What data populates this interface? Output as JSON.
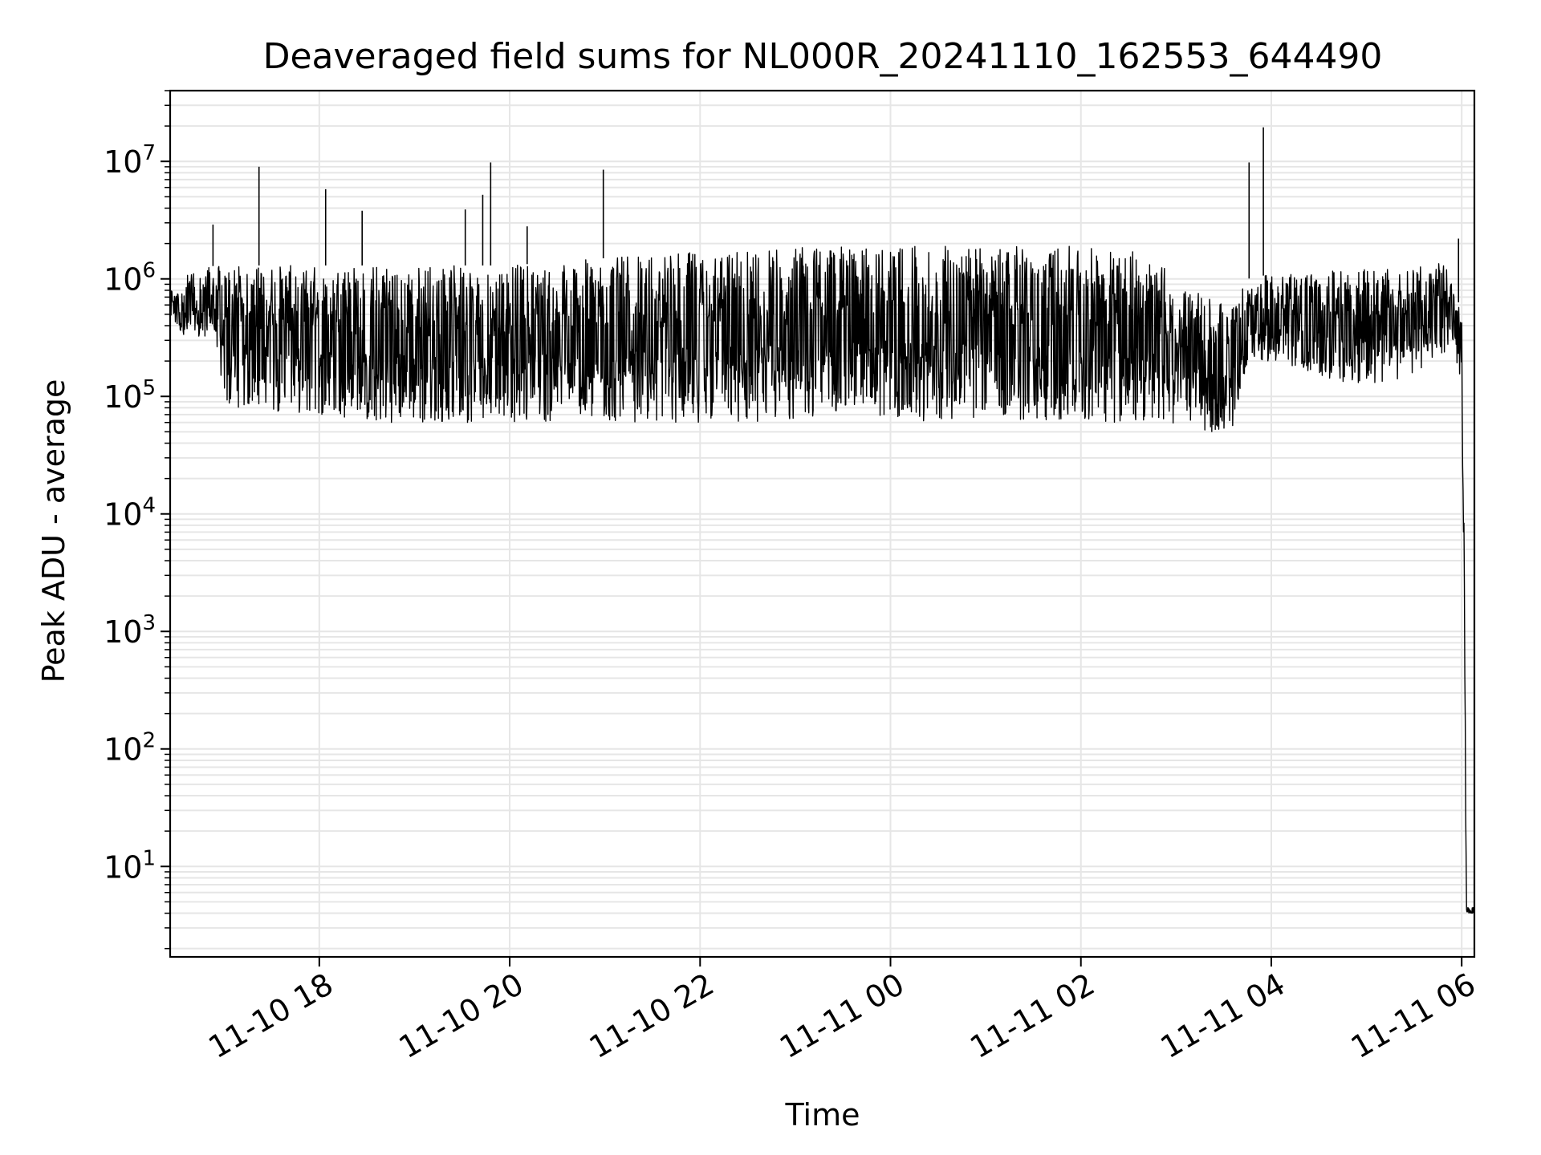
{
  "chart_data": {
    "type": "line",
    "title": "Deaveraged field sums for NL000R_20241110_162553_644490",
    "xlabel": "Time",
    "ylabel": "Peak ADU - average",
    "yscale": "log",
    "ylim": [
      1.7,
      40000000
    ],
    "xlim": [
      "11-10 16:26",
      "11-11 06:08"
    ],
    "grid": true,
    "x_ticks": [
      "11-10 18",
      "11-10 20",
      "11-10 22",
      "11-11 00",
      "11-11 02",
      "11-11 04",
      "11-11 06"
    ],
    "y_ticks": [
      {
        "base": "10",
        "exp": "1",
        "value": 10
      },
      {
        "base": "10",
        "exp": "2",
        "value": 100
      },
      {
        "base": "10",
        "exp": "3",
        "value": 1000
      },
      {
        "base": "10",
        "exp": "4",
        "value": 10000
      },
      {
        "base": "10",
        "exp": "5",
        "value": 100000
      },
      {
        "base": "10",
        "exp": "6",
        "value": 1000000
      },
      {
        "base": "10",
        "exp": "7",
        "value": 10000000
      }
    ],
    "series": [
      {
        "color": "#000000",
        "x": [
          "11-10 16:26",
          "11-10 16:40",
          "11-10 16:55",
          "11-10 17:00",
          "11-10 17:10",
          "11-10 17:30",
          "11-10 18:00",
          "11-10 18:30",
          "11-10 19:00",
          "11-10 19:30",
          "11-10 20:00",
          "11-10 20:30",
          "11-10 21:00",
          "11-10 21:30",
          "11-10 22:00",
          "11-10 22:30",
          "11-10 23:00",
          "11-10 23:30",
          "11-11 00:00",
          "11-11 00:30",
          "11-11 01:00",
          "11-11 01:30",
          "11-11 02:00",
          "11-11 02:30",
          "11-11 02:50",
          "11-11 03:00",
          "11-11 03:20",
          "11-11 03:35",
          "11-11 03:45",
          "11-11 04:00",
          "11-11 04:30",
          "11-11 05:00",
          "11-11 05:30",
          "11-11 05:50",
          "11-11 05:55",
          "11-11 06:00",
          "11-11 06:01",
          "11-11 06:03",
          "11-11 06:08"
        ],
        "y_high": [
          800000,
          1200000,
          1300000,
          1250000,
          1300000,
          1300000,
          1300000,
          1300000,
          1300000,
          1300000,
          1300000,
          1400000,
          1500000,
          1600000,
          1700000,
          1800000,
          1850000,
          1900000,
          1900000,
          1900000,
          1950000,
          1900000,
          1900000,
          1800000,
          1400000,
          900000,
          700000,
          600000,
          1000000,
          1100000,
          1150000,
          1200000,
          1250000,
          1400000,
          900000,
          500000,
          80000,
          4.5,
          4.5
        ],
        "y_low": [
          400000,
          300000,
          300000,
          85000,
          80000,
          75000,
          70000,
          60000,
          60000,
          60000,
          60000,
          60000,
          60000,
          60000,
          60000,
          60000,
          65000,
          70000,
          65000,
          60000,
          60000,
          60000,
          60000,
          60000,
          60000,
          55000,
          50000,
          50000,
          200000,
          200000,
          150000,
          120000,
          150000,
          200000,
          300000,
          100000,
          10000,
          4,
          4
        ],
        "spikes": [
          {
            "x": "11-10 16:53",
            "y": 2900000
          },
          {
            "x": "11-10 17:22",
            "y": 9000000
          },
          {
            "x": "11-10 18:04",
            "y": 5800000
          },
          {
            "x": "11-10 18:27",
            "y": 3800000
          },
          {
            "x": "11-10 19:32",
            "y": 3900000
          },
          {
            "x": "11-10 19:43",
            "y": 5200000
          },
          {
            "x": "11-10 19:48",
            "y": 9800000
          },
          {
            "x": "11-10 20:11",
            "y": 2800000
          },
          {
            "x": "11-10 20:59",
            "y": 8500000
          },
          {
            "x": "11-11 03:46",
            "y": 9800000
          },
          {
            "x": "11-11 03:55",
            "y": 19500000
          },
          {
            "x": "11-11 05:58",
            "y": 2200000
          }
        ]
      }
    ]
  }
}
